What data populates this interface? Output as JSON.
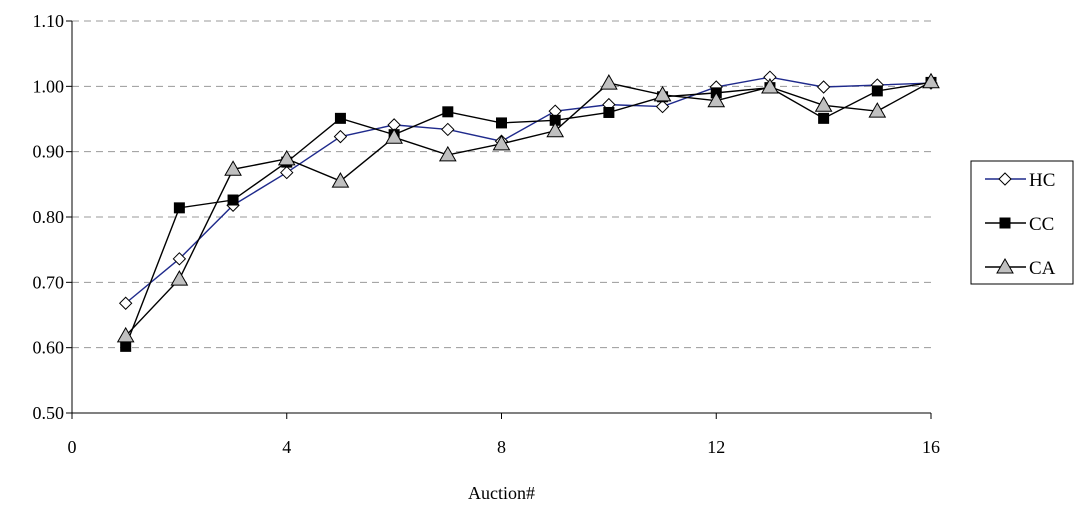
{
  "chart_data": {
    "type": "line",
    "title": "",
    "xlabel": "Auction#",
    "ylabel": "",
    "xlim": [
      0,
      16
    ],
    "ylim": [
      0.5,
      1.1
    ],
    "x_ticks": [
      "0",
      "4",
      "8",
      "12",
      "16"
    ],
    "y_ticks": [
      "0.50",
      "0.60",
      "0.70",
      "0.80",
      "0.90",
      "1.00",
      "1.10"
    ],
    "grid": "horizontal dashed",
    "legend_position": "right",
    "x": [
      1,
      2,
      3,
      4,
      5,
      6,
      7,
      8,
      9,
      10,
      11,
      12,
      13,
      14,
      15,
      16
    ],
    "series": [
      {
        "name": "HC",
        "marker": "diamond",
        "line_color": "#1f2a8c",
        "marker_fill": "#ffffff",
        "values": [
          0.668,
          0.736,
          0.818,
          0.868,
          0.923,
          0.941,
          0.934,
          0.916,
          0.962,
          0.972,
          0.969,
          0.999,
          1.014,
          0.999,
          1.002,
          1.005
        ]
      },
      {
        "name": "CC",
        "marker": "square",
        "line_color": "#000000",
        "marker_fill": "#000000",
        "values": [
          0.602,
          0.814,
          0.826,
          0.884,
          0.951,
          0.926,
          0.961,
          0.944,
          0.948,
          0.96,
          0.984,
          0.99,
          0.998,
          0.951,
          0.993,
          1.006
        ]
      },
      {
        "name": "CA",
        "marker": "triangle",
        "line_color": "#000000",
        "marker_fill": "#c0c0c0",
        "values": [
          0.618,
          0.705,
          0.873,
          0.889,
          0.855,
          0.922,
          0.895,
          0.912,
          0.932,
          1.005,
          0.987,
          0.978,
          0.999,
          0.971,
          0.962,
          1.007
        ]
      }
    ]
  }
}
